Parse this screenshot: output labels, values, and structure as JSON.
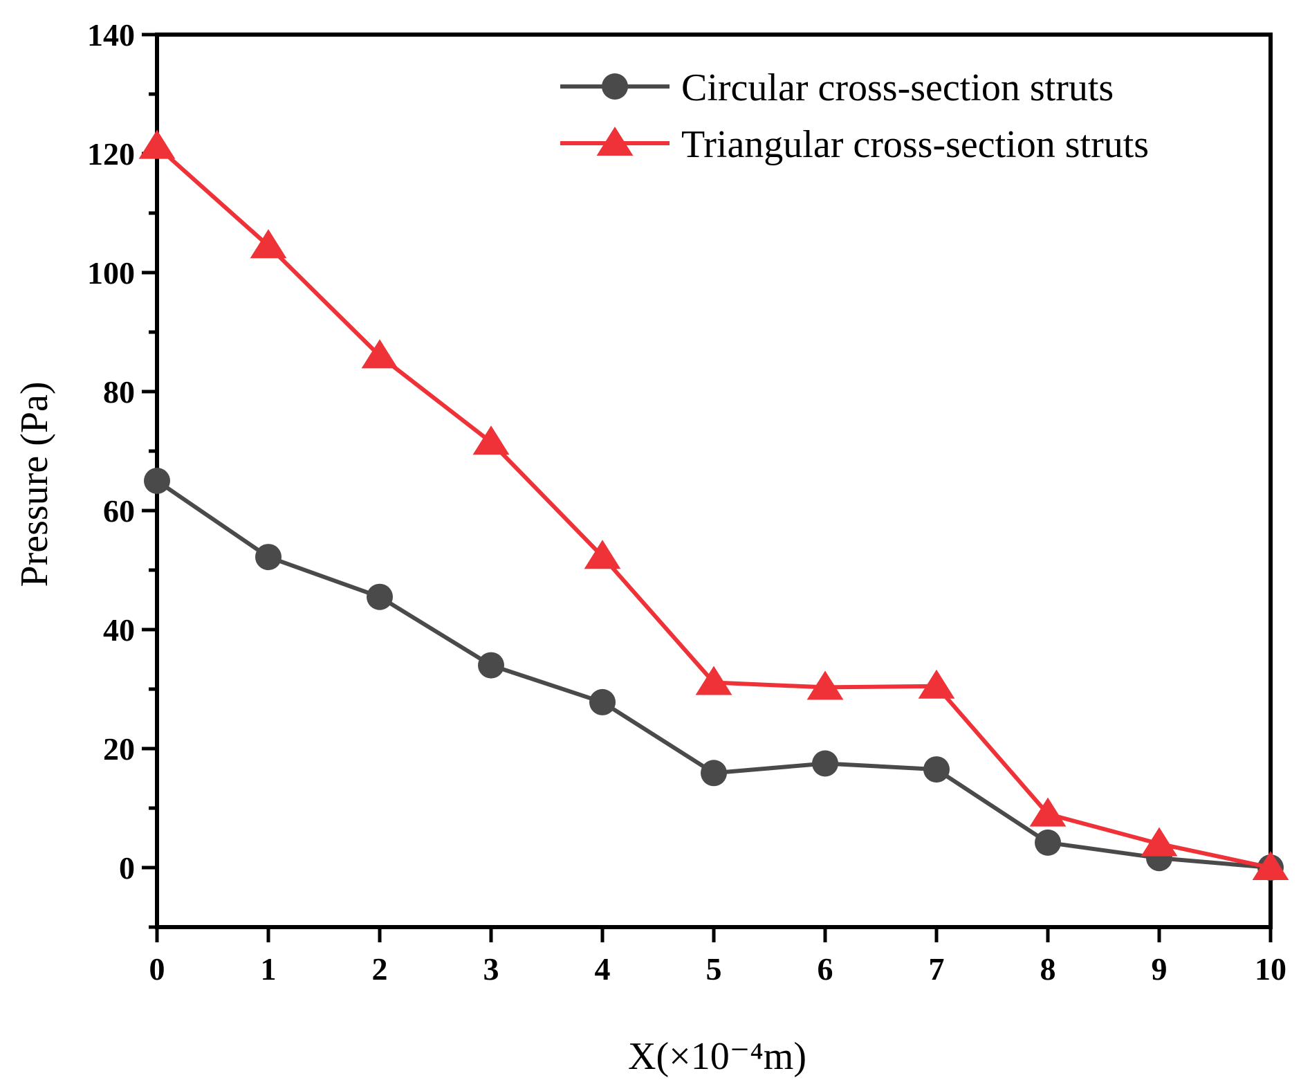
{
  "chart_data": {
    "type": "line",
    "title": "",
    "xlabel": "X(×10⁻⁴m)",
    "ylabel": "Pressure (Pa)",
    "xlim": [
      0,
      10
    ],
    "ylim": [
      -10,
      140
    ],
    "x_ticks": [
      0,
      1,
      2,
      3,
      4,
      5,
      6,
      7,
      8,
      9,
      10
    ],
    "y_ticks": [
      0,
      20,
      40,
      60,
      80,
      100,
      120,
      140
    ],
    "x": [
      0,
      1,
      2,
      3,
      4,
      5,
      6,
      7,
      8,
      9,
      10
    ],
    "grid": false,
    "legend_position": "top-right",
    "series": [
      {
        "name": "Circular cross-section struts",
        "marker": "circle",
        "color": "#4a4a4a",
        "values": [
          65,
          52.2,
          45.5,
          34,
          27.8,
          15.9,
          17.5,
          16.5,
          4.2,
          1.6,
          0
        ]
      },
      {
        "name": "Triangular cross-section struts",
        "marker": "triangle",
        "color": "#ee3237",
        "values": [
          121.2,
          104.5,
          86,
          71.5,
          52.3,
          31.1,
          30.3,
          30.5,
          9,
          4,
          0
        ]
      }
    ]
  }
}
